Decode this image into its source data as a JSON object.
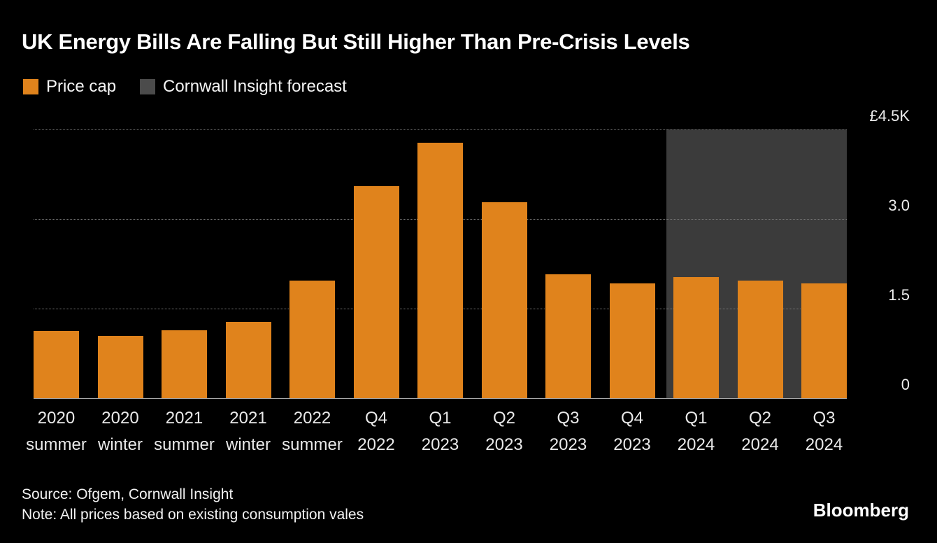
{
  "header": {
    "title": "UK Energy Bills Are Falling But Still Higher Than Pre-Crisis Levels"
  },
  "legend": {
    "items": [
      {
        "label": "Price cap",
        "color": "#E0831C"
      },
      {
        "label": "Cornwall Insight forecast",
        "color": "#4B4B4B"
      }
    ]
  },
  "chart_data": {
    "type": "bar",
    "title": "UK Energy Bills Are Falling But Still Higher Than Pre-Crisis Levels",
    "categories": [
      "2020 summer",
      "2020 winter",
      "2021 summer",
      "2021 winter",
      "2022 summer",
      "Q4 2022",
      "Q1 2023",
      "Q2 2023",
      "Q3 2023",
      "Q4 2023",
      "Q1 2024",
      "Q2 2024",
      "Q3 2024"
    ],
    "category_labels": [
      {
        "top": "2020",
        "bottom": "summer"
      },
      {
        "top": "2020",
        "bottom": "winter"
      },
      {
        "top": "2021",
        "bottom": "summer"
      },
      {
        "top": "2021",
        "bottom": "winter"
      },
      {
        "top": "2022",
        "bottom": "summer"
      },
      {
        "top": "Q4",
        "bottom": "2022"
      },
      {
        "top": "Q1",
        "bottom": "2023"
      },
      {
        "top": "Q2",
        "bottom": "2023"
      },
      {
        "top": "Q3",
        "bottom": "2023"
      },
      {
        "top": "Q4",
        "bottom": "2023"
      },
      {
        "top": "Q1",
        "bottom": "2024"
      },
      {
        "top": "Q2",
        "bottom": "2024"
      },
      {
        "top": "Q3",
        "bottom": "2024"
      }
    ],
    "series": [
      {
        "name": "Price cap",
        "values": [
          1126,
          1042,
          1138,
          1277,
          1971,
          3549,
          4279,
          3280,
          2074,
          1923,
          2033,
          1964,
          1917
        ]
      }
    ],
    "values": [
      1126,
      1042,
      1138,
      1277,
      1971,
      3549,
      4279,
      3280,
      2074,
      1923,
      2033,
      1964,
      1917
    ],
    "forecast": {
      "label": "Cornwall Insight forecast",
      "start_index": 10,
      "band_color": "#3B3B3B"
    },
    "bar_color": "#E0831C",
    "ylim": [
      0,
      4500
    ],
    "yticks": [
      {
        "label": "£4.5K",
        "value": 4500
      },
      {
        "label": "3.0",
        "value": 3000
      },
      {
        "label": "1.5",
        "value": 1500
      },
      {
        "label": "0",
        "value": 0
      }
    ],
    "grid": "horizontal-dotted",
    "legend_position": "top-left",
    "xlabel": "",
    "ylabel": ""
  },
  "footer": {
    "source": "Source: Ofgem, Cornwall Insight",
    "note": "Note: All prices based on existing consumption vales",
    "brand": "Bloomberg"
  }
}
